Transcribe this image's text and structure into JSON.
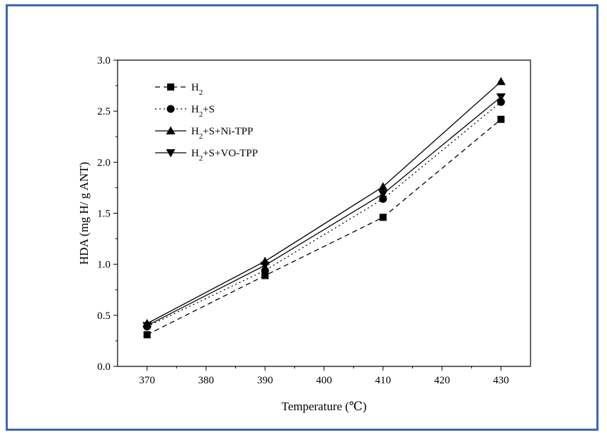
{
  "chart_data": {
    "type": "line",
    "title": "",
    "xlabel": "Temperature (℃)",
    "ylabel": "HDA (mg H/ g ANT)",
    "xlim": [
      365,
      435
    ],
    "ylim": [
      0.0,
      3.0
    ],
    "x_ticks": [
      "370",
      "380",
      "390",
      "400",
      "410",
      "420",
      "430"
    ],
    "y_ticks": [
      "0.0",
      "0.5",
      "1.0",
      "1.5",
      "2.0",
      "2.5",
      "3.0"
    ],
    "x": [
      370,
      390,
      410,
      430
    ],
    "legend_position": "top-left",
    "grid": false,
    "series": [
      {
        "name_main": "H",
        "name_sub": "2",
        "name_rest": "",
        "marker": "square",
        "line": "dashed",
        "color": "#000000",
        "values": [
          0.31,
          0.89,
          1.46,
          2.42
        ]
      },
      {
        "name_main": "H",
        "name_sub": "2",
        "name_rest": "+S",
        "marker": "circle",
        "line": "dotted",
        "color": "#000000",
        "values": [
          0.39,
          0.94,
          1.64,
          2.59
        ]
      },
      {
        "name_main": "H",
        "name_sub": "2",
        "name_rest": "+S+Ni-TPP",
        "marker": "triangle-up",
        "line": "solid",
        "color": "#000000",
        "values": [
          0.42,
          1.03,
          1.76,
          2.79
        ]
      },
      {
        "name_main": "H",
        "name_sub": "2",
        "name_rest": "+S+VO-TPP",
        "marker": "triangle-down",
        "line": "solid",
        "color": "#000000",
        "values": [
          0.4,
          0.99,
          1.69,
          2.64
        ]
      }
    ]
  },
  "frame_color": "#3f67b2"
}
